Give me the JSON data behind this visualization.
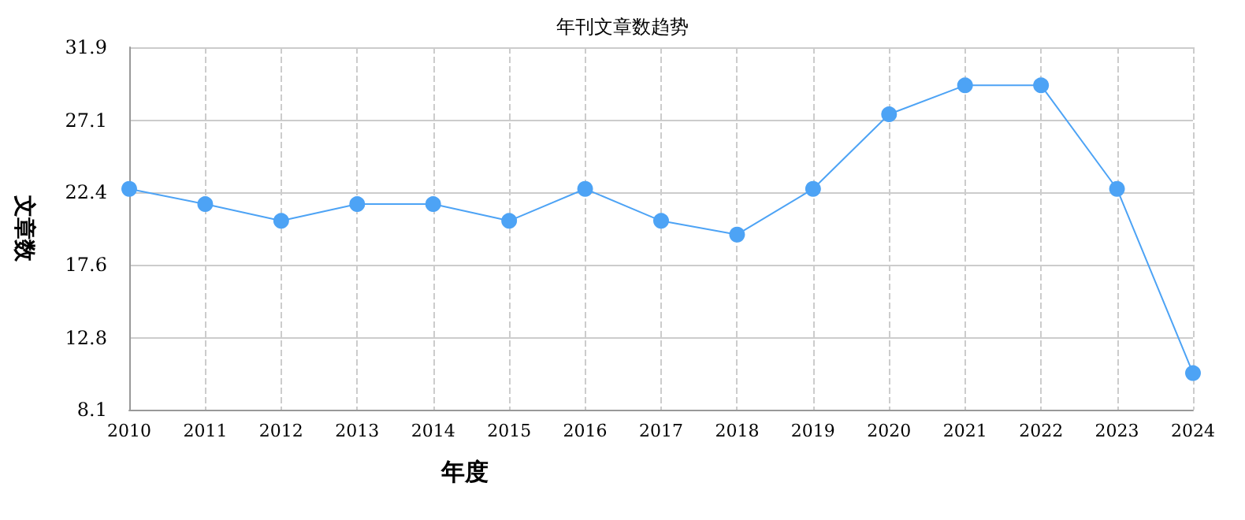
{
  "chart_data": {
    "type": "line",
    "title": "年刊文章数趋势",
    "xlabel": "年度",
    "ylabel": "文章数",
    "categories": [
      "2010",
      "2011",
      "2012",
      "2013",
      "2014",
      "2015",
      "2016",
      "2017",
      "2018",
      "2019",
      "2020",
      "2021",
      "2022",
      "2023",
      "2024"
    ],
    "series": [
      {
        "color": "#4da3f5",
        "values": [
          22.6,
          21.6,
          20.5,
          21.6,
          21.6,
          20.5,
          22.6,
          20.5,
          19.6,
          22.6,
          27.5,
          29.4,
          29.4,
          22.6,
          10.5
        ]
      }
    ],
    "ylim": [
      8.1,
      31.9
    ],
    "yticks": [
      8.1,
      12.8,
      17.6,
      22.4,
      27.1,
      31.9
    ],
    "grid": true,
    "marker": "circle",
    "line_style": "solid"
  }
}
